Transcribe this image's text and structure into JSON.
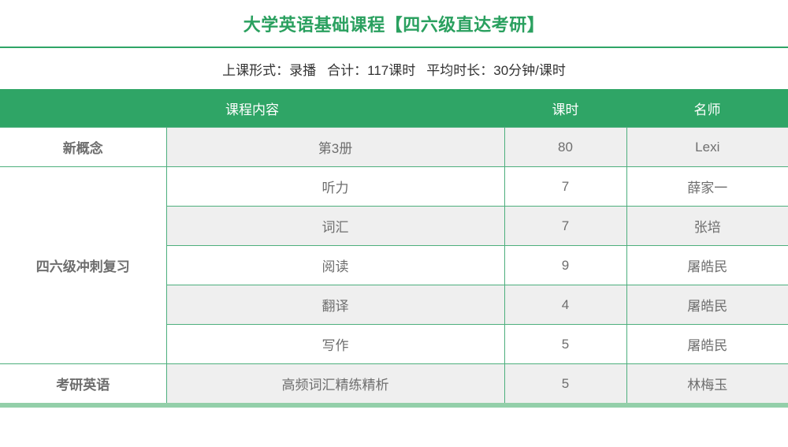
{
  "title": "大学英语基础课程【四六级直达考研】",
  "subtitle": {
    "parts": [
      "上课形式：录播",
      "合计：117课时",
      "平均时长：30分钟/课时"
    ]
  },
  "colors": {
    "header_green": "#2fa566",
    "border_green": "#4daf7d",
    "accent_band_green": "#93cfa9",
    "text_green": "#2aa05f",
    "row_gray": "#efefef",
    "cell_text": "#6e6e6e"
  },
  "table": {
    "headers": [
      "课程内容",
      "课时",
      "名师"
    ],
    "groups": [
      {
        "category": "新概念",
        "rows": [
          {
            "content": "第3册",
            "hours": "80",
            "teacher": "Lexi"
          }
        ]
      },
      {
        "category": "四六级冲刺复习",
        "rows": [
          {
            "content": "听力",
            "hours": "7",
            "teacher": "薛家一"
          },
          {
            "content": "词汇",
            "hours": "7",
            "teacher": "张培"
          },
          {
            "content": "阅读",
            "hours": "9",
            "teacher": "屠皓民"
          },
          {
            "content": "翻译",
            "hours": "4",
            "teacher": "屠皓民"
          },
          {
            "content": "写作",
            "hours": "5",
            "teacher": "屠皓民"
          }
        ]
      },
      {
        "category": "考研英语",
        "rows": [
          {
            "content": "高频词汇精练精析",
            "hours": "5",
            "teacher": "林梅玉"
          }
        ]
      }
    ]
  }
}
